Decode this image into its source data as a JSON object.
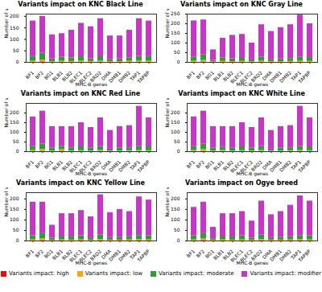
{
  "chart_data": [
    {
      "type": "bar",
      "title": "Variants impact on KNC Black Line",
      "x_label": "MHC-B genes",
      "y_label": "Number of variants",
      "stacked": true,
      "legend": "bottom",
      "categories": [
        "BF1",
        "BF2",
        "BG1",
        "BLB1",
        "BLB2",
        "BLEC1",
        "BLEC2",
        "BRD2",
        "DMA",
        "DMB1",
        "DMB2",
        "TAP1",
        "TAPBP"
      ],
      "ylim": [
        0,
        210
      ],
      "yticks": [
        0,
        50,
        100,
        150,
        200
      ],
      "series": [
        {
          "name": "Variants impact: high",
          "color": "#ff0000",
          "values": [
            0,
            2,
            0,
            0,
            0,
            0,
            0,
            0,
            0,
            0,
            0,
            0,
            0
          ]
        },
        {
          "name": "Variants impact: low",
          "color": "#ffa500",
          "values": [
            5,
            8,
            3,
            5,
            4,
            6,
            4,
            6,
            3,
            3,
            5,
            6,
            5
          ]
        },
        {
          "name": "Variants impact: moderate",
          "color": "#2ca02c",
          "values": [
            20,
            30,
            12,
            18,
            15,
            22,
            12,
            22,
            10,
            12,
            15,
            20,
            20
          ]
        },
        {
          "name": "Variants impact: modifier",
          "color": "#cc33cc",
          "values": [
            155,
            160,
            105,
            102,
            121,
            142,
            139,
            162,
            102,
            100,
            120,
            164,
            155
          ]
        }
      ]
    },
    {
      "type": "bar",
      "title": "Variants impact on KNC Gray Line",
      "x_label": "MHC-B genes",
      "y_label": "Number of variants",
      "stacked": true,
      "legend": "bottom",
      "categories": [
        "BF1",
        "BF2",
        "BG1",
        "BLB1",
        "BLB2",
        "BLEC1",
        "BLEC2",
        "BRD2",
        "DMA",
        "DMB1",
        "DMB2",
        "TAP1",
        "TAPBP"
      ],
      "ylim": [
        0,
        250
      ],
      "yticks": [
        0,
        50,
        100,
        150,
        200,
        250
      ],
      "series": [
        {
          "name": "Variants impact: high",
          "color": "#ff0000",
          "values": [
            0,
            2,
            0,
            0,
            0,
            0,
            0,
            0,
            0,
            0,
            0,
            0,
            0
          ]
        },
        {
          "name": "Variants impact: low",
          "color": "#ffa500",
          "values": [
            6,
            8,
            2,
            5,
            4,
            5,
            3,
            6,
            4,
            4,
            5,
            6,
            5
          ]
        },
        {
          "name": "Variants impact: moderate",
          "color": "#2ca02c",
          "values": [
            22,
            30,
            8,
            18,
            15,
            20,
            10,
            22,
            12,
            14,
            15,
            22,
            20
          ]
        },
        {
          "name": "Variants impact: modifier",
          "color": "#cc33cc",
          "values": [
            187,
            180,
            55,
            102,
            121,
            120,
            87,
            167,
            144,
            162,
            175,
            217,
            175
          ]
        }
      ]
    },
    {
      "type": "bar",
      "title": "Variants impact on KNC Red Line",
      "x_label": "MHC-B genes",
      "y_label": "Number of variants",
      "stacked": true,
      "legend": "bottom",
      "categories": [
        "BF1",
        "BF2",
        "BG1",
        "BLB1",
        "BLB2",
        "BLEC1",
        "BLEC2",
        "BRD2",
        "DMA",
        "DMB1",
        "DMB2",
        "TAP1",
        "TAPBP"
      ],
      "ylim": [
        0,
        250
      ],
      "yticks": [
        0,
        50,
        100,
        150,
        200
      ],
      "series": [
        {
          "name": "Variants impact: high",
          "color": "#ff0000",
          "values": [
            0,
            2,
            0,
            2,
            0,
            0,
            0,
            0,
            0,
            0,
            0,
            0,
            0
          ]
        },
        {
          "name": "Variants impact: low",
          "color": "#ffa500",
          "values": [
            6,
            10,
            4,
            8,
            4,
            5,
            4,
            6,
            3,
            4,
            5,
            6,
            5
          ]
        },
        {
          "name": "Variants impact: moderate",
          "color": "#2ca02c",
          "values": [
            22,
            28,
            14,
            18,
            16,
            20,
            14,
            20,
            10,
            14,
            15,
            22,
            20
          ]
        },
        {
          "name": "Variants impact: modifier",
          "color": "#cc33cc",
          "values": [
            152,
            170,
            112,
            102,
            110,
            125,
            107,
            149,
            97,
            112,
            115,
            207,
            150
          ]
        }
      ]
    },
    {
      "type": "bar",
      "title": "Variants impact on KNC White Line",
      "x_label": "MHC-B genes",
      "y_label": "Number of variants",
      "stacked": true,
      "legend": "bottom",
      "categories": [
        "BF1",
        "BF2",
        "BG1",
        "BLB1",
        "BLB2",
        "BLEC1",
        "BLEC2",
        "BRD2",
        "DMA",
        "DMB1",
        "DMB2",
        "TAP1",
        "TAPBP"
      ],
      "ylim": [
        0,
        250
      ],
      "yticks": [
        0,
        50,
        100,
        150,
        200
      ],
      "series": [
        {
          "name": "Variants impact: high",
          "color": "#ff0000",
          "values": [
            0,
            2,
            0,
            0,
            0,
            0,
            0,
            0,
            0,
            0,
            0,
            0,
            0
          ]
        },
        {
          "name": "Variants impact: low",
          "color": "#ffa500",
          "values": [
            6,
            9,
            4,
            6,
            4,
            5,
            4,
            6,
            3,
            4,
            5,
            6,
            5
          ]
        },
        {
          "name": "Variants impact: moderate",
          "color": "#2ca02c",
          "values": [
            22,
            28,
            14,
            18,
            16,
            20,
            14,
            20,
            10,
            14,
            15,
            22,
            20
          ]
        },
        {
          "name": "Variants impact: modifier",
          "color": "#cc33cc",
          "values": [
            152,
            171,
            112,
            106,
            110,
            125,
            107,
            149,
            97,
            112,
            115,
            207,
            150
          ]
        }
      ]
    },
    {
      "type": "bar",
      "title": "Variants impact on KNC Yellow Line",
      "x_label": "MHC-B genes",
      "y_label": "Number of variants",
      "stacked": true,
      "legend": "bottom",
      "categories": [
        "BF1",
        "BF2",
        "BG1",
        "BLB1",
        "BLB2",
        "BLEC1",
        "BLEC2",
        "BRD2",
        "DMA",
        "DMB1",
        "DMB2",
        "TAP1",
        "TAPBP"
      ],
      "ylim": [
        0,
        230
      ],
      "yticks": [
        0,
        50,
        100,
        150,
        200
      ],
      "series": [
        {
          "name": "Variants impact: high",
          "color": "#ff0000",
          "values": [
            0,
            2,
            0,
            0,
            0,
            0,
            0,
            0,
            0,
            0,
            0,
            0,
            0
          ]
        },
        {
          "name": "Variants impact: low",
          "color": "#ffa500",
          "values": [
            5,
            8,
            3,
            5,
            4,
            5,
            3,
            6,
            4,
            4,
            5,
            6,
            5
          ]
        },
        {
          "name": "Variants impact: moderate",
          "color": "#2ca02c",
          "values": [
            20,
            25,
            10,
            18,
            15,
            20,
            12,
            22,
            12,
            14,
            15,
            20,
            20
          ]
        },
        {
          "name": "Variants impact: modifier",
          "color": "#cc33cc",
          "values": [
            160,
            150,
            62,
            107,
            111,
            120,
            100,
            192,
            119,
            132,
            120,
            184,
            170
          ]
        }
      ]
    },
    {
      "type": "bar",
      "title": "Variants impact on Ogye breed",
      "x_label": "MHC-B genes",
      "y_label": "Number of variants",
      "stacked": true,
      "legend": "bottom",
      "categories": [
        "BF1",
        "BF2",
        "BG1",
        "BLB1",
        "BLB2",
        "BLEC1",
        "BLEC2",
        "BRD2",
        "DMA",
        "DMB1",
        "DMB2",
        "TAP1",
        "TAPBP"
      ],
      "ylim": [
        0,
        230
      ],
      "yticks": [
        0,
        50,
        100,
        150,
        200
      ],
      "series": [
        {
          "name": "Variants impact: high",
          "color": "#ff0000",
          "values": [
            0,
            2,
            0,
            0,
            0,
            0,
            0,
            0,
            0,
            0,
            0,
            0,
            0
          ]
        },
        {
          "name": "Variants impact: low",
          "color": "#ffa500",
          "values": [
            5,
            8,
            3,
            5,
            4,
            5,
            3,
            6,
            4,
            4,
            5,
            6,
            5
          ]
        },
        {
          "name": "Variants impact: moderate",
          "color": "#2ca02c",
          "values": [
            20,
            25,
            8,
            18,
            15,
            20,
            10,
            22,
            12,
            14,
            15,
            20,
            20
          ]
        },
        {
          "name": "Variants impact: modifier",
          "color": "#cc33cc",
          "values": [
            135,
            150,
            54,
            107,
            111,
            115,
            82,
            162,
            109,
            122,
            150,
            189,
            165
          ]
        }
      ]
    }
  ]
}
